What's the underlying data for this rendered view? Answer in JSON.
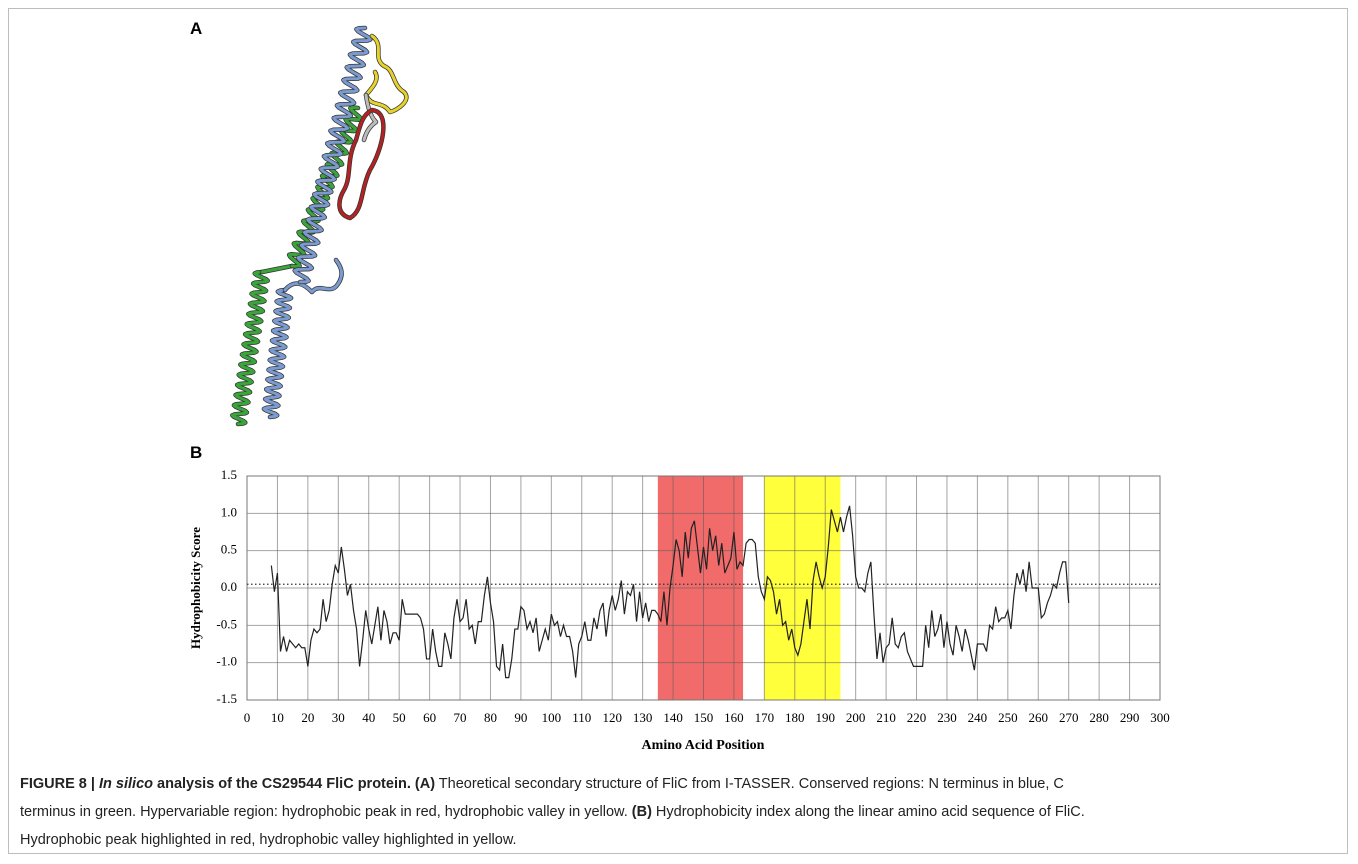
{
  "panel_labels": [
    "A",
    "B"
  ],
  "chart_data": {
    "type": "line",
    "xlabel": "Amino Acid Position",
    "ylabel": "Hydrophobicity Score",
    "color": "#222222",
    "x": [
      8,
      9,
      10,
      11,
      12,
      13,
      14,
      15,
      16,
      17,
      18,
      19,
      20,
      21,
      22,
      23,
      24,
      25,
      26,
      27,
      28,
      29,
      30,
      31,
      32,
      33,
      34,
      35,
      36,
      37,
      38,
      39,
      40,
      41,
      42,
      43,
      44,
      45,
      46,
      47,
      48,
      49,
      50,
      51,
      52,
      53,
      54,
      55,
      56,
      57,
      58,
      59,
      60,
      61,
      62,
      63,
      64,
      65,
      66,
      67,
      68,
      69,
      70,
      71,
      72,
      73,
      74,
      75,
      76,
      77,
      78,
      79,
      80,
      81,
      82,
      83,
      84,
      85,
      86,
      87,
      88,
      89,
      90,
      91,
      92,
      93,
      94,
      95,
      96,
      97,
      98,
      99,
      100,
      101,
      102,
      103,
      104,
      105,
      106,
      107,
      108,
      109,
      110,
      111,
      112,
      113,
      114,
      115,
      116,
      117,
      118,
      119,
      120,
      121,
      122,
      123,
      124,
      125,
      126,
      127,
      128,
      129,
      130,
      131,
      132,
      133,
      134,
      135,
      136,
      137,
      138,
      139,
      140,
      141,
      142,
      143,
      144,
      145,
      146,
      147,
      148,
      149,
      150,
      151,
      152,
      153,
      154,
      155,
      156,
      157,
      158,
      159,
      160,
      161,
      162,
      163,
      164,
      165,
      166,
      167,
      168,
      169,
      170,
      171,
      172,
      173,
      174,
      175,
      176,
      177,
      178,
      179,
      180,
      181,
      182,
      183,
      184,
      185,
      186,
      187,
      188,
      189,
      190,
      191,
      192,
      193,
      194,
      195,
      196,
      197,
      198,
      199,
      200,
      201,
      202,
      203,
      204,
      205,
      206,
      207,
      208,
      209,
      210,
      211,
      212,
      213,
      214,
      215,
      216,
      217,
      218,
      219,
      220,
      221,
      222,
      223,
      224,
      225,
      226,
      227,
      228,
      229,
      230,
      231,
      232,
      233,
      234,
      235,
      236,
      237,
      238,
      239,
      240,
      241,
      242,
      243,
      244,
      245,
      246,
      247,
      248,
      249,
      250,
      251,
      252,
      253,
      254,
      255,
      256,
      257,
      258,
      259,
      260,
      261,
      262,
      263,
      264,
      265,
      266,
      267,
      268,
      269,
      270
    ],
    "values": [
      0.3,
      -0.05,
      0.2,
      -0.85,
      -0.65,
      -0.85,
      -0.7,
      -0.75,
      -0.8,
      -0.75,
      -0.8,
      -0.8,
      -1.05,
      -0.7,
      -0.55,
      -0.6,
      -0.55,
      -0.15,
      -0.45,
      -0.3,
      0.05,
      0.3,
      0.2,
      0.55,
      0.25,
      -0.1,
      0.05,
      -0.3,
      -0.55,
      -1.05,
      -0.7,
      -0.3,
      -0.55,
      -0.75,
      -0.5,
      -0.25,
      -0.7,
      -0.3,
      -0.45,
      -0.75,
      -0.6,
      -0.6,
      -0.7,
      -0.15,
      -0.35,
      -0.35,
      -0.35,
      -0.35,
      -0.35,
      -0.4,
      -0.55,
      -0.95,
      -0.95,
      -0.55,
      -0.85,
      -1.05,
      -1.05,
      -0.6,
      -0.75,
      -0.95,
      -0.4,
      -0.15,
      -0.45,
      -0.4,
      -0.15,
      -0.55,
      -0.5,
      -0.75,
      -0.45,
      -0.45,
      -0.1,
      0.15,
      -0.2,
      -0.45,
      -1.05,
      -1.1,
      -0.75,
      -1.2,
      -1.2,
      -0.95,
      -0.55,
      -0.55,
      -0.25,
      -0.3,
      -0.55,
      -0.45,
      -0.6,
      -0.4,
      -0.85,
      -0.7,
      -0.55,
      -0.7,
      -0.35,
      -0.5,
      -0.45,
      -0.65,
      -0.5,
      -0.65,
      -0.65,
      -0.85,
      -1.2,
      -0.75,
      -0.65,
      -0.45,
      -0.7,
      -0.7,
      -0.4,
      -0.55,
      -0.3,
      -0.2,
      -0.65,
      -0.3,
      -0.1,
      -0.3,
      -0.15,
      0.1,
      -0.35,
      -0.05,
      -0.1,
      0.05,
      -0.45,
      -0.05,
      -0.4,
      -0.2,
      -0.45,
      -0.3,
      -0.3,
      -0.35,
      -0.45,
      -0.05,
      -0.5,
      0,
      0.3,
      0.65,
      0.5,
      0.15,
      0.75,
      0.4,
      0.8,
      0.9,
      0.55,
      0.2,
      0.55,
      0.25,
      0.8,
      0.5,
      0.7,
      0.3,
      0.6,
      0.2,
      0.3,
      0.4,
      0.75,
      0.25,
      0.35,
      0.3,
      0.6,
      0.65,
      0.65,
      0.6,
      0.15,
      -0.05,
      -0.15,
      0.15,
      0.1,
      -0.05,
      -0.35,
      -0.15,
      -0.5,
      -0.45,
      -0.7,
      -0.55,
      -0.8,
      -0.9,
      -0.75,
      -0.45,
      -0.15,
      -0.55,
      0.1,
      0.35,
      0.15,
      0,
      0.15,
      0.55,
      1.05,
      0.9,
      0.75,
      0.95,
      0.75,
      0.95,
      1.1,
      0.7,
      0.15,
      0,
      0,
      -0.05,
      0.2,
      0.35,
      -0.35,
      -0.95,
      -0.6,
      -1,
      -0.8,
      -0.75,
      -0.4,
      -0.75,
      -0.8,
      -0.65,
      -0.6,
      -0.85,
      -0.95,
      -1.05,
      -1.05,
      -1.05,
      -1.05,
      -0.5,
      -0.8,
      -0.3,
      -0.65,
      -0.55,
      -0.35,
      -0.8,
      -0.45,
      -0.75,
      -0.9,
      -0.5,
      -0.65,
      -0.85,
      -0.55,
      -0.7,
      -0.9,
      -1.1,
      -0.75,
      -0.75,
      -0.75,
      -0.85,
      -0.5,
      -0.55,
      -0.25,
      -0.45,
      -0.4,
      -0.4,
      -0.3,
      -0.55,
      -0.1,
      0.2,
      0.05,
      0.25,
      -0.05,
      0.35,
      0,
      0,
      0,
      -0.4,
      -0.35,
      -0.2,
      -0.1,
      0.05,
      0,
      0.2,
      0.35,
      0.35,
      -0.2
    ],
    "xlim": [
      0,
      300
    ],
    "xticks": [
      0,
      10,
      20,
      30,
      40,
      50,
      60,
      70,
      80,
      90,
      100,
      110,
      120,
      130,
      140,
      150,
      160,
      170,
      180,
      190,
      200,
      210,
      220,
      230,
      240,
      250,
      260,
      270,
      280,
      290,
      300
    ],
    "ylim": [
      -1.5,
      1.5
    ],
    "yticks": [
      1.5,
      {
        "value": 1,
        "label": "1.0"
      },
      0.5,
      {
        "value": 0,
        "label": "0.0"
      },
      -0.5,
      {
        "value": -1,
        "label": "-1.0"
      },
      -1.5
    ],
    "grid": true,
    "reference_line": 0.05,
    "highlights": [
      {
        "xmin": 135,
        "xmax": 163,
        "color": "#f26b6b"
      },
      {
        "xmin": 170,
        "xmax": 195,
        "color": "#ffff3c"
      }
    ]
  },
  "caption": [
    "FIGURE 8 | ",
    "In silico",
    " analysis of the CS29544 FliC protein.",
    " (A)",
    " Theoretical secondary structure of FliC from I-TASSER. Conserved regions: N terminus in blue, C",
    "terminus in green. Hypervariable region: hydrophobic peak in red, hydrophobic valley in yellow. ",
    "(B)",
    " Hydrophobicity index along the linear amino acid sequence of FliC.",
    "Hydrophobic peak highlighted in red, hydrophobic valley highlighted in yellow."
  ]
}
